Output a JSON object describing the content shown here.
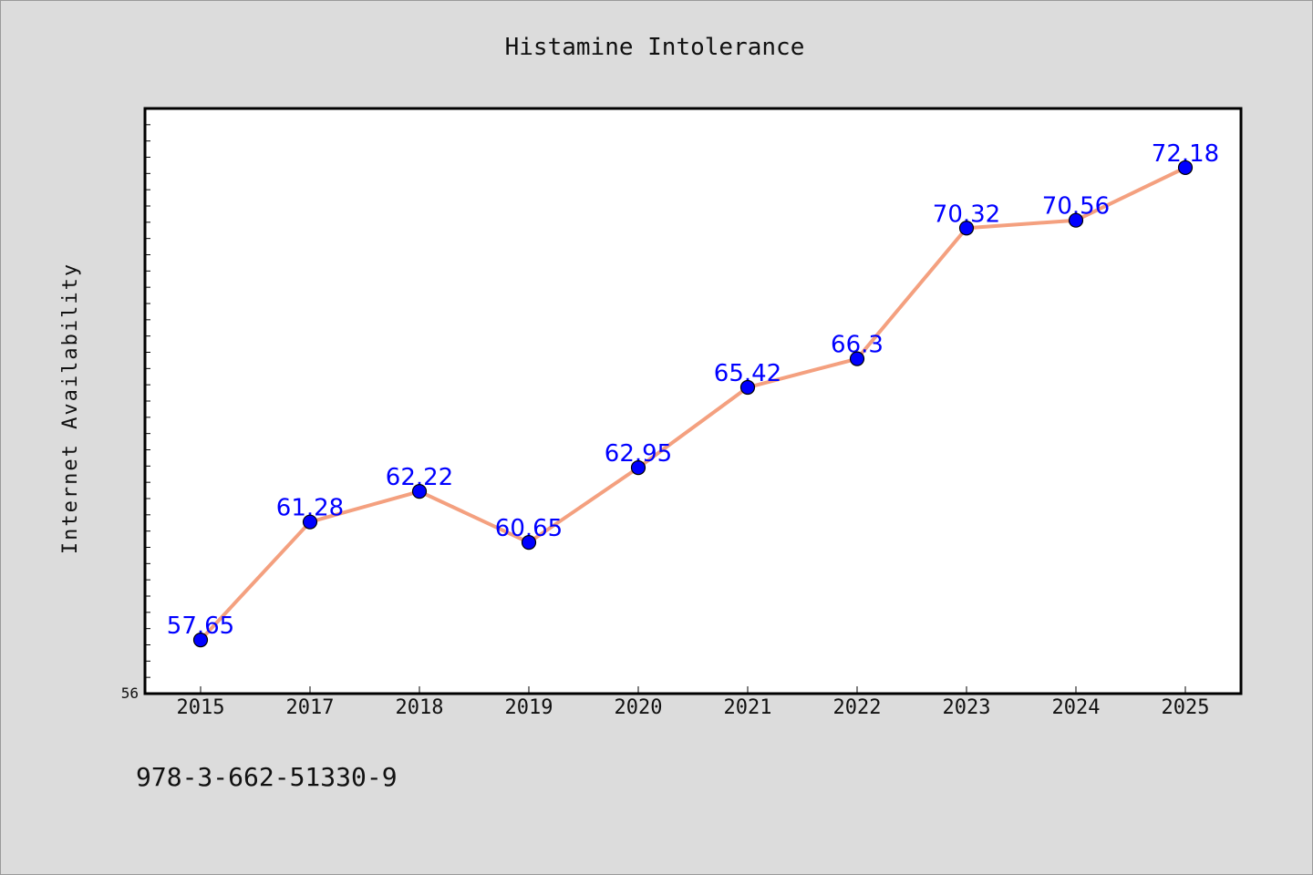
{
  "chart_data": {
    "type": "line",
    "title": "Histamine Intolerance",
    "xlabel": "",
    "ylabel": "Internet Availability",
    "categories": [
      "2015",
      "2017",
      "2018",
      "2019",
      "2020",
      "2021",
      "2022",
      "2023",
      "2024",
      "2025"
    ],
    "series": [
      {
        "values": [
          57.65,
          61.28,
          62.22,
          60.65,
          62.95,
          65.42,
          66.3,
          70.32,
          70.56,
          72.18
        ],
        "labels": [
          "57.65",
          "61.28",
          "62.22",
          "60.65",
          "62.95",
          "65.42",
          "66.3",
          "70.32",
          "70.56",
          "72.18"
        ]
      }
    ],
    "ylim": [
      56,
      74
    ],
    "y_min_label": "56",
    "grid": false,
    "colors": {
      "line": "#f4a07f",
      "marker": "#0000ff",
      "data_label": "#0000ff",
      "plot_bg": "#ffffff",
      "page_bg": "#dcdcdc"
    }
  },
  "footer": {
    "isbn": "978-3-662-51330-9"
  }
}
